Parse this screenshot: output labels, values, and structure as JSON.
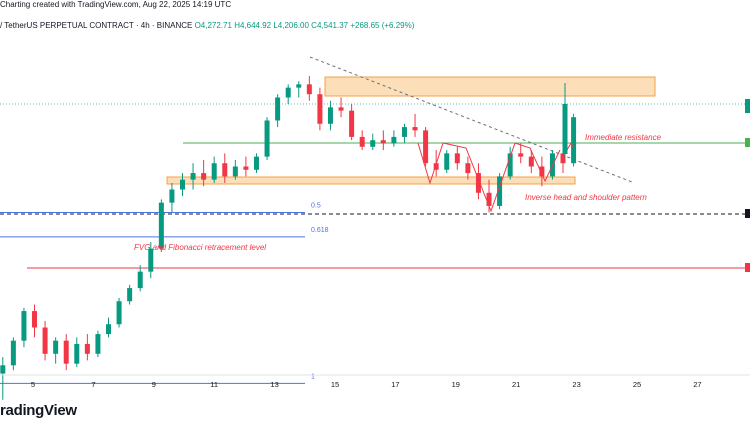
{
  "header": {
    "created_line": "Charting created with TradingView.com, Aug 22, 2025 14:19 UTC",
    "symbol_line": "/ TetherUS PERPETUAL CONTRACT · 4h · BINANCE",
    "ohlc": {
      "open": "O4,272.71",
      "high": "H4,644.92",
      "low": "L4,206.00",
      "close": "C4,541.37",
      "change": "+268.65 (+6.29%)"
    }
  },
  "branding": {
    "logo_text": "radingView"
  },
  "chart_data": {
    "type": "candlestick",
    "x_tick_labels": [
      "5",
      "7",
      "9",
      "11",
      "13",
      "15",
      "17",
      "19",
      "21",
      "23",
      "25",
      "27"
    ],
    "candles": [
      {
        "x": 4.0,
        "o": 3590,
        "h": 3640,
        "l": 3510,
        "c": 3615
      },
      {
        "x": 4.35,
        "o": 3615,
        "h": 3700,
        "l": 3600,
        "c": 3690
      },
      {
        "x": 4.7,
        "o": 3690,
        "h": 3790,
        "l": 3670,
        "c": 3780
      },
      {
        "x": 5.05,
        "o": 3780,
        "h": 3800,
        "l": 3700,
        "c": 3730
      },
      {
        "x": 5.4,
        "o": 3730,
        "h": 3750,
        "l": 3630,
        "c": 3650
      },
      {
        "x": 5.75,
        "o": 3650,
        "h": 3700,
        "l": 3620,
        "c": 3690
      },
      {
        "x": 6.1,
        "o": 3690,
        "h": 3710,
        "l": 3600,
        "c": 3620
      },
      {
        "x": 6.45,
        "o": 3620,
        "h": 3700,
        "l": 3610,
        "c": 3680
      },
      {
        "x": 6.8,
        "o": 3680,
        "h": 3710,
        "l": 3630,
        "c": 3650
      },
      {
        "x": 7.15,
        "o": 3650,
        "h": 3720,
        "l": 3640,
        "c": 3710
      },
      {
        "x": 7.5,
        "o": 3710,
        "h": 3760,
        "l": 3700,
        "c": 3740
      },
      {
        "x": 7.85,
        "o": 3740,
        "h": 3820,
        "l": 3730,
        "c": 3810
      },
      {
        "x": 8.2,
        "o": 3810,
        "h": 3860,
        "l": 3800,
        "c": 3850
      },
      {
        "x": 8.55,
        "o": 3850,
        "h": 3920,
        "l": 3840,
        "c": 3900
      },
      {
        "x": 8.9,
        "o": 3900,
        "h": 3990,
        "l": 3880,
        "c": 3970
      },
      {
        "x": 9.25,
        "o": 3970,
        "h": 4120,
        "l": 3960,
        "c": 4110
      },
      {
        "x": 9.6,
        "o": 4110,
        "h": 4170,
        "l": 4080,
        "c": 4150
      },
      {
        "x": 9.95,
        "o": 4150,
        "h": 4200,
        "l": 4130,
        "c": 4180
      },
      {
        "x": 10.3,
        "o": 4180,
        "h": 4230,
        "l": 4150,
        "c": 4200
      },
      {
        "x": 10.65,
        "o": 4200,
        "h": 4240,
        "l": 4160,
        "c": 4180
      },
      {
        "x": 11.0,
        "o": 4180,
        "h": 4250,
        "l": 4170,
        "c": 4230
      },
      {
        "x": 11.35,
        "o": 4230,
        "h": 4260,
        "l": 4170,
        "c": 4190
      },
      {
        "x": 11.7,
        "o": 4190,
        "h": 4240,
        "l": 4180,
        "c": 4220
      },
      {
        "x": 12.05,
        "o": 4220,
        "h": 4250,
        "l": 4190,
        "c": 4210
      },
      {
        "x": 12.4,
        "o": 4210,
        "h": 4260,
        "l": 4200,
        "c": 4250
      },
      {
        "x": 12.75,
        "o": 4250,
        "h": 4370,
        "l": 4240,
        "c": 4360
      },
      {
        "x": 13.1,
        "o": 4360,
        "h": 4440,
        "l": 4340,
        "c": 4430
      },
      {
        "x": 13.45,
        "o": 4430,
        "h": 4470,
        "l": 4410,
        "c": 4460
      },
      {
        "x": 13.8,
        "o": 4460,
        "h": 4480,
        "l": 4430,
        "c": 4470
      },
      {
        "x": 14.15,
        "o": 4470,
        "h": 4495,
        "l": 4420,
        "c": 4440
      },
      {
        "x": 14.5,
        "o": 4440,
        "h": 4460,
        "l": 4330,
        "c": 4350
      },
      {
        "x": 14.85,
        "o": 4350,
        "h": 4420,
        "l": 4330,
        "c": 4400
      },
      {
        "x": 15.2,
        "o": 4400,
        "h": 4430,
        "l": 4370,
        "c": 4390
      },
      {
        "x": 15.55,
        "o": 4390,
        "h": 4410,
        "l": 4300,
        "c": 4310
      },
      {
        "x": 15.9,
        "o": 4310,
        "h": 4330,
        "l": 4270,
        "c": 4280
      },
      {
        "x": 16.25,
        "o": 4280,
        "h": 4320,
        "l": 4270,
        "c": 4300
      },
      {
        "x": 16.6,
        "o": 4300,
        "h": 4330,
        "l": 4270,
        "c": 4290
      },
      {
        "x": 16.95,
        "o": 4290,
        "h": 4330,
        "l": 4280,
        "c": 4310
      },
      {
        "x": 17.3,
        "o": 4310,
        "h": 4350,
        "l": 4290,
        "c": 4340
      },
      {
        "x": 17.65,
        "o": 4340,
        "h": 4380,
        "l": 4310,
        "c": 4330
      },
      {
        "x": 18.0,
        "o": 4330,
        "h": 4340,
        "l": 4220,
        "c": 4230
      },
      {
        "x": 18.35,
        "o": 4230,
        "h": 4270,
        "l": 4190,
        "c": 4210
      },
      {
        "x": 18.7,
        "o": 4210,
        "h": 4270,
        "l": 4200,
        "c": 4260
      },
      {
        "x": 19.05,
        "o": 4260,
        "h": 4280,
        "l": 4210,
        "c": 4230
      },
      {
        "x": 19.4,
        "o": 4230,
        "h": 4250,
        "l": 4180,
        "c": 4200
      },
      {
        "x": 19.75,
        "o": 4200,
        "h": 4230,
        "l": 4120,
        "c": 4140
      },
      {
        "x": 20.1,
        "o": 4140,
        "h": 4180,
        "l": 4080,
        "c": 4100
      },
      {
        "x": 20.45,
        "o": 4100,
        "h": 4200,
        "l": 4090,
        "c": 4190
      },
      {
        "x": 20.8,
        "o": 4190,
        "h": 4280,
        "l": 4180,
        "c": 4260
      },
      {
        "x": 21.15,
        "o": 4260,
        "h": 4290,
        "l": 4230,
        "c": 4250
      },
      {
        "x": 21.5,
        "o": 4250,
        "h": 4270,
        "l": 4200,
        "c": 4220
      },
      {
        "x": 21.85,
        "o": 4220,
        "h": 4250,
        "l": 4160,
        "c": 4190
      },
      {
        "x": 22.2,
        "o": 4190,
        "h": 4270,
        "l": 4180,
        "c": 4260
      },
      {
        "x": 22.55,
        "o": 4260,
        "h": 4290,
        "l": 4200,
        "c": 4230
      },
      {
        "x": 22.9,
        "o": 4230,
        "h": 4380,
        "l": 4220,
        "c": 4370
      }
    ],
    "annotations": {
      "fib_levels": [
        {
          "label": "0.5",
          "price": 4080
        },
        {
          "label": "0.618",
          "price": 4006
        },
        {
          "label": "1",
          "price": 3560
        }
      ],
      "texts": [
        {
          "text": "FVG and Fibonacci retracement level"
        },
        {
          "text": "Immediate resistance"
        },
        {
          "text": "Inverse head and shoulder pattern"
        }
      ],
      "colors": {
        "bull": "#089981",
        "bear": "#f23645",
        "zone_fill": "#fbd7a7",
        "zone_stroke": "#f3a047",
        "fib_line": "#4a75e0",
        "resistance_line": "#4caf50",
        "pattern_line": "#f23645",
        "trendline": "#6b6f7a"
      }
    }
  }
}
